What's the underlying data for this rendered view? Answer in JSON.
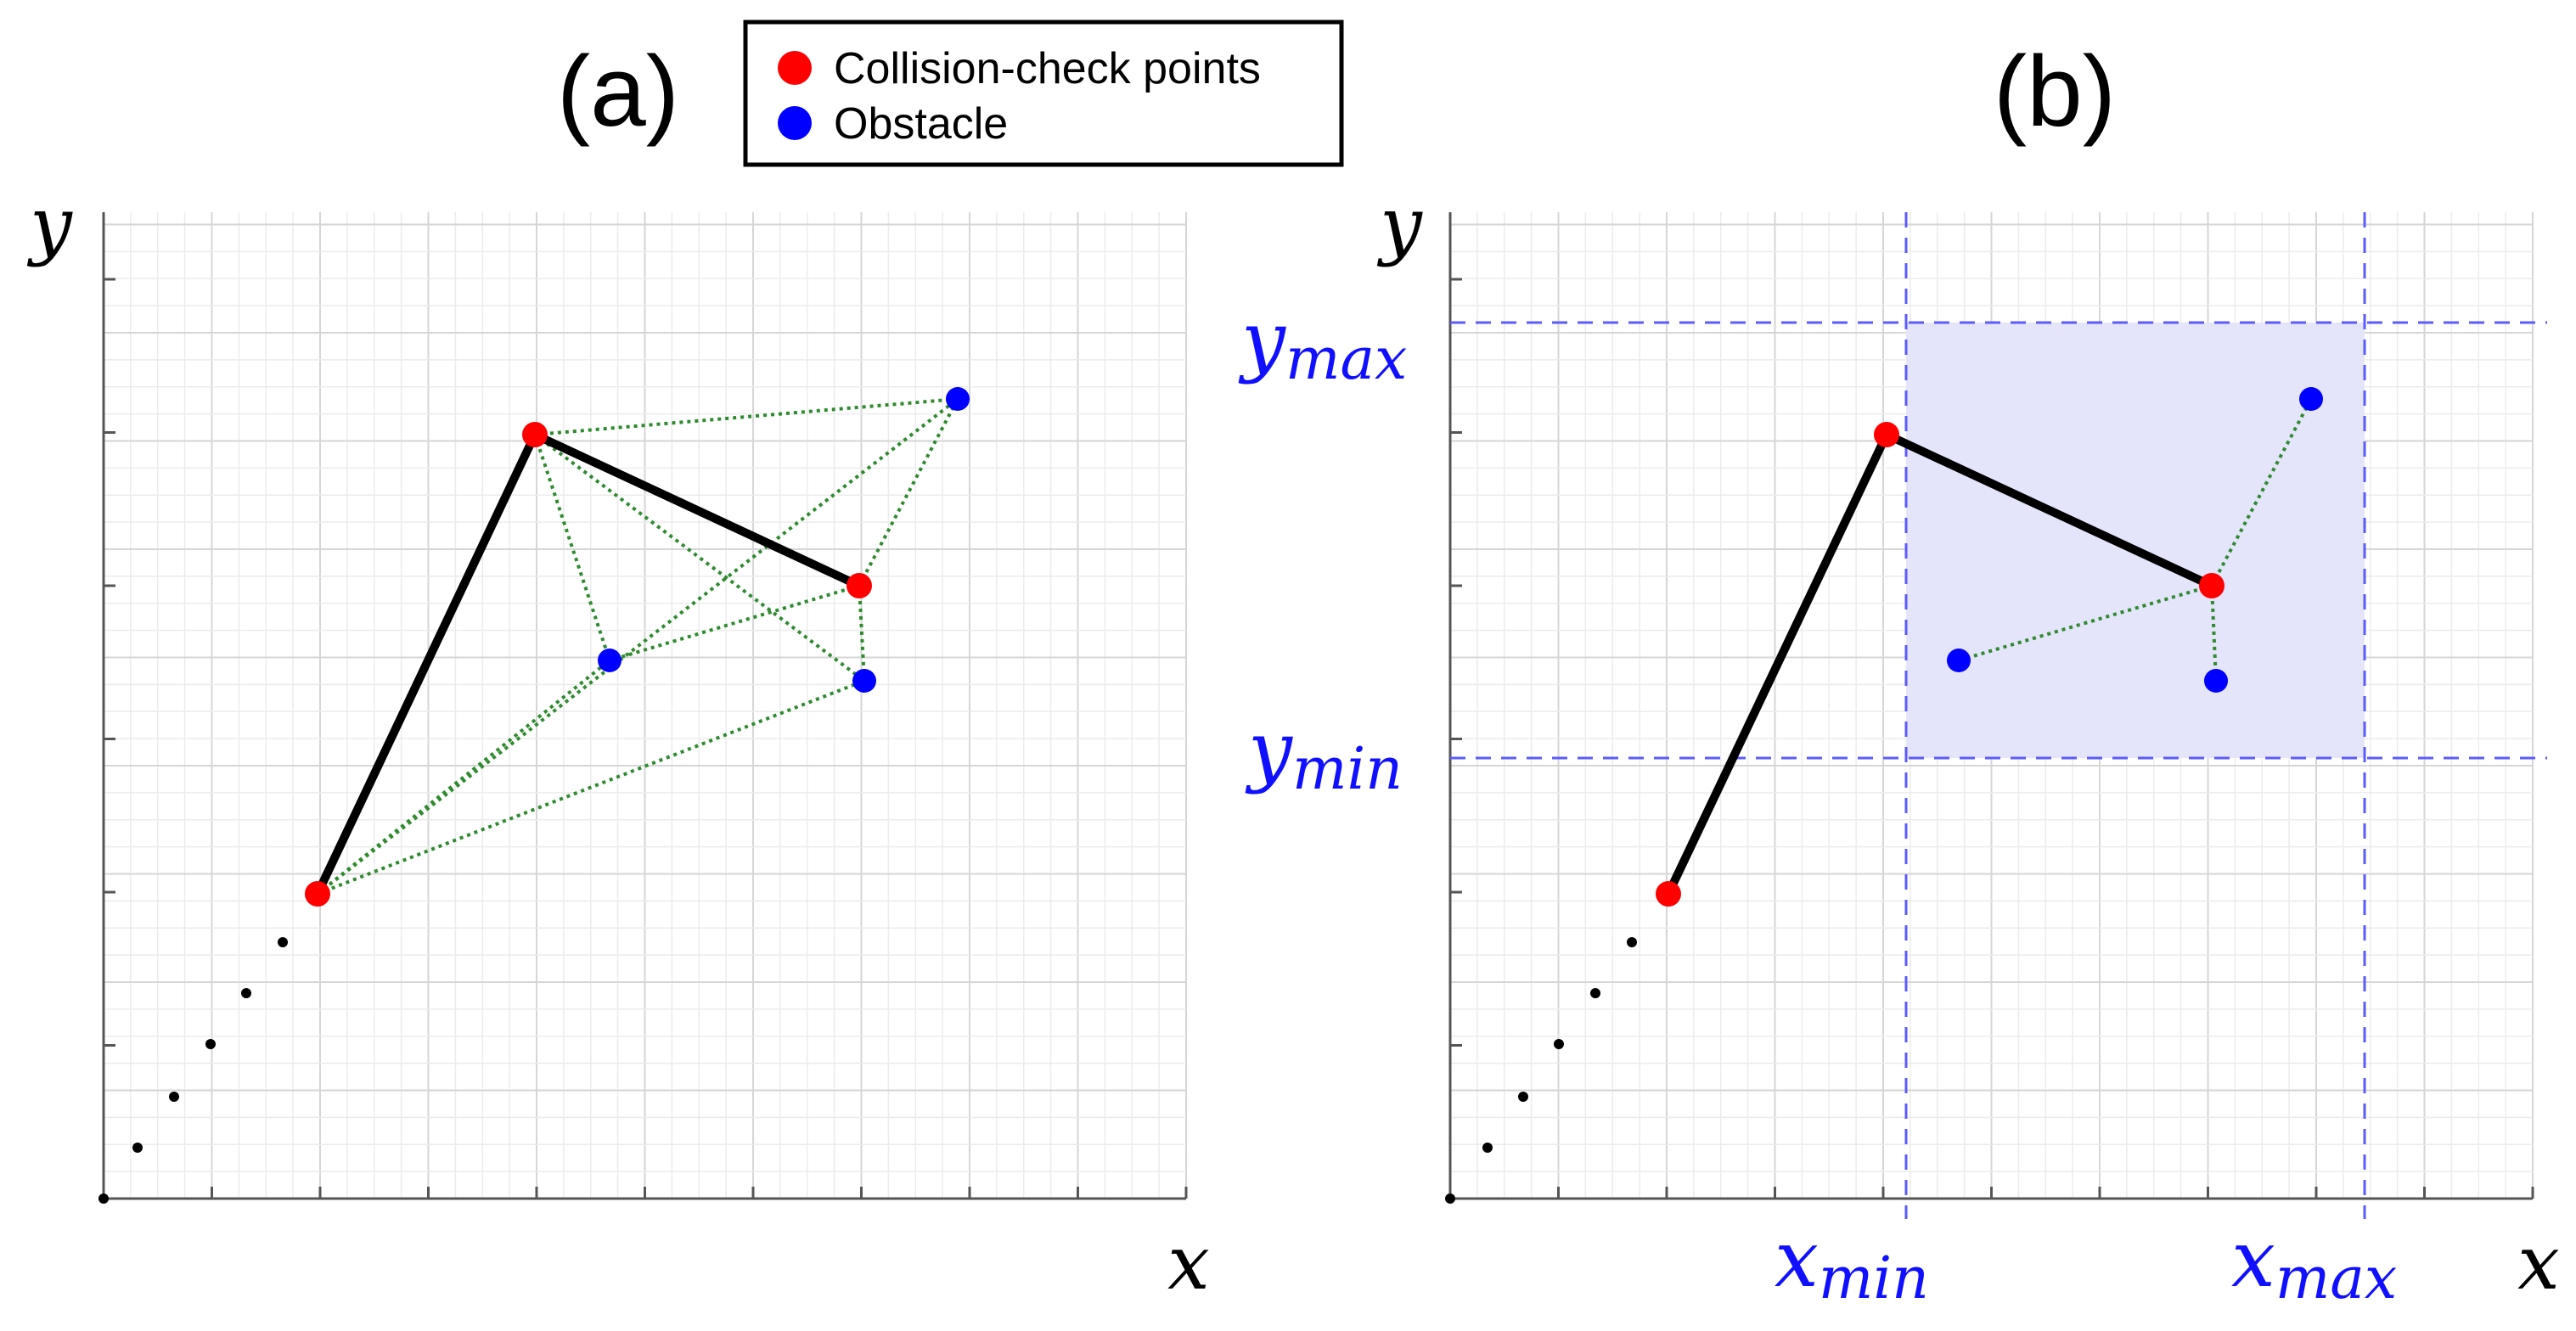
{
  "figure": {
    "panel_a_label": "(a)",
    "panel_b_label": "(b)",
    "legend": {
      "items": [
        {
          "label": "Collision-check points",
          "color": "#ff0000"
        },
        {
          "label": "Obstacle",
          "color": "#0000ff"
        }
      ]
    },
    "axis_labels": {
      "x": "x",
      "y": "y"
    },
    "bounds": {
      "x_min_base": "x",
      "x_min_sub": "min",
      "x_max_base": "x",
      "x_max_sub": "max",
      "y_min_base": "y",
      "y_min_sub": "min",
      "y_max_base": "y",
      "y_max_sub": "max"
    },
    "colors": {
      "link": "#000000",
      "distance_line": "#2e8b2e",
      "bound_line": "#5b5bff",
      "bound_fill": "#e4e4fb",
      "grid_minor": "#ececec",
      "grid_major": "#d6d6d6",
      "axis": "#555555"
    }
  }
}
